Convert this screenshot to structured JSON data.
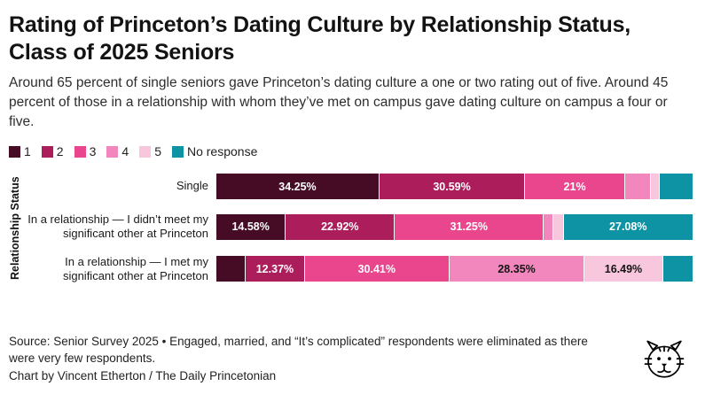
{
  "title": "Rating of Princeton’s Dating Culture by Relationship Status, Class of 2025 Seniors",
  "subtitle": "Around 65 percent of single seniors gave Princeton’s dating culture a one or two rating out of five. Around 45 percent of those in a relationship with whom they’ve met on campus gave dating culture on campus a four or five.",
  "y_axis_label": "Relationship Status",
  "legend": [
    {
      "label": "1",
      "color": "#460c26"
    },
    {
      "label": "2",
      "color": "#ab1e5b"
    },
    {
      "label": "3",
      "color": "#e9468d"
    },
    {
      "label": "4",
      "color": "#f287bd"
    },
    {
      "label": "5",
      "color": "#f8c7dd"
    },
    {
      "label": "No response",
      "color": "#0e93a4"
    }
  ],
  "chart_data": {
    "type": "bar",
    "orientation": "horizontal",
    "stacked": true,
    "unit": "percent",
    "xlim": [
      0,
      100
    ],
    "grid": false,
    "legend_position": "top",
    "categories": [
      "Single",
      "In a relationship — I didn’t meet my significant other at Princeton",
      "In a relationship — I met my significant other at Princeton"
    ],
    "series": [
      {
        "name": "1",
        "color": "#460c26",
        "values": [
          34.25,
          14.58,
          6.19
        ]
      },
      {
        "name": "2",
        "color": "#ab1e5b",
        "values": [
          30.59,
          22.92,
          12.37
        ]
      },
      {
        "name": "3",
        "color": "#e9468d",
        "values": [
          21,
          31.25,
          30.41
        ]
      },
      {
        "name": "4",
        "color": "#f287bd",
        "values": [
          5.5,
          2.08,
          28.35
        ]
      },
      {
        "name": "5",
        "color": "#f8c7dd",
        "values": [
          1.8,
          2.09,
          16.49
        ]
      },
      {
        "name": "No response",
        "color": "#0e93a4",
        "values": [
          6.86,
          27.08,
          6.19
        ]
      }
    ],
    "segment_labels": [
      [
        "34.25%",
        "30.59%",
        "21%",
        "",
        "",
        ""
      ],
      [
        "14.58%",
        "22.92%",
        "31.25%",
        "",
        "",
        "27.08%"
      ],
      [
        "",
        "12.37%",
        "30.41%",
        "28.35%",
        "16.49%",
        ""
      ]
    ]
  },
  "footer": {
    "source": "Source: Senior Survey 2025 • Engaged, married, and “It’s complicated” respondents were eliminated as there were very few respondents.",
    "credit": "Chart by Vincent Etherton / The Daily Princetonian"
  }
}
